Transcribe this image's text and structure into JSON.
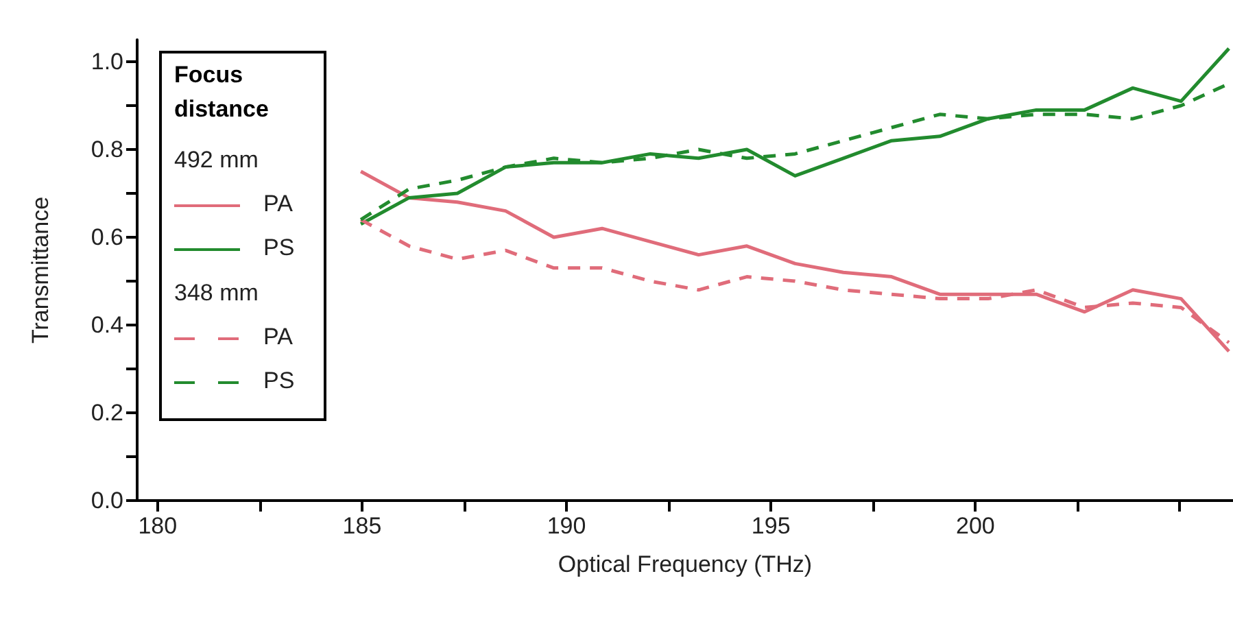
{
  "chart_data": {
    "type": "line",
    "xlabel": "Optical Frequency (THz)",
    "ylabel": "Transmittance",
    "legend_title": "Focus distance",
    "annotations": [
      "492 mm",
      "348 mm"
    ],
    "legend": "left",
    "grid": false,
    "x": [
      184.97,
      186.15,
      187.33,
      188.51,
      189.69,
      190.87,
      192.05,
      193.23,
      194.41,
      195.59,
      196.77,
      197.95,
      199.13,
      200.31,
      201.49,
      202.67,
      203.85,
      205.03,
      206.2
    ],
    "xlim": [
      179.5,
      206.3
    ],
    "xticks": [
      180,
      {
        "value": 182.5,
        "label": null
      },
      185,
      {
        "value": 187.5,
        "label": null
      },
      190,
      {
        "value": 192.5,
        "label": null
      },
      195,
      {
        "value": 197.5,
        "label": null
      },
      200,
      {
        "value": 202.5,
        "label": null
      },
      {
        "value": 205,
        "label": null
      }
    ],
    "ylim": [
      0,
      1.05
    ],
    "yticks": [
      {
        "value": 0,
        "label": "0.0"
      },
      {
        "value": 0.1,
        "label": null
      },
      0.2,
      {
        "value": 0.3,
        "label": null
      },
      0.4,
      {
        "value": 0.5,
        "label": null
      },
      0.6,
      {
        "value": 0.7,
        "label": null
      },
      0.8,
      {
        "value": 0.9,
        "label": null
      },
      {
        "value": 1,
        "label": "1.0"
      }
    ],
    "series": [
      {
        "name": "PA",
        "color": "#e06c7a",
        "line_style": "solid",
        "values": [
          0.75,
          0.69,
          0.68,
          0.66,
          0.6,
          0.62,
          0.59,
          0.56,
          0.58,
          0.54,
          0.52,
          0.51,
          0.47,
          0.47,
          0.47,
          0.43,
          0.48,
          0.46,
          0.34
        ]
      },
      {
        "name": "PS",
        "color": "#228b2e",
        "line_style": "solid",
        "values": [
          0.63,
          0.69,
          0.7,
          0.76,
          0.77,
          0.77,
          0.79,
          0.78,
          0.8,
          0.74,
          0.78,
          0.82,
          0.83,
          0.87,
          0.89,
          0.89,
          0.94,
          0.91,
          1.03
        ]
      },
      {
        "name": "PA",
        "color": "#e06c7a",
        "line_style": "dashed",
        "values": [
          0.64,
          0.58,
          0.55,
          0.57,
          0.53,
          0.53,
          0.5,
          0.48,
          0.51,
          0.5,
          0.48,
          0.47,
          0.46,
          0.46,
          0.48,
          0.44,
          0.45,
          0.44,
          0.36
        ]
      },
      {
        "name": "PS",
        "color": "#228b2e",
        "line_style": "dashed",
        "values": [
          0.64,
          0.71,
          0.73,
          0.76,
          0.78,
          0.77,
          0.78,
          0.8,
          0.78,
          0.79,
          0.82,
          0.85,
          0.88,
          0.87,
          0.88,
          0.88,
          0.87,
          0.9,
          0.95
        ]
      }
    ]
  }
}
